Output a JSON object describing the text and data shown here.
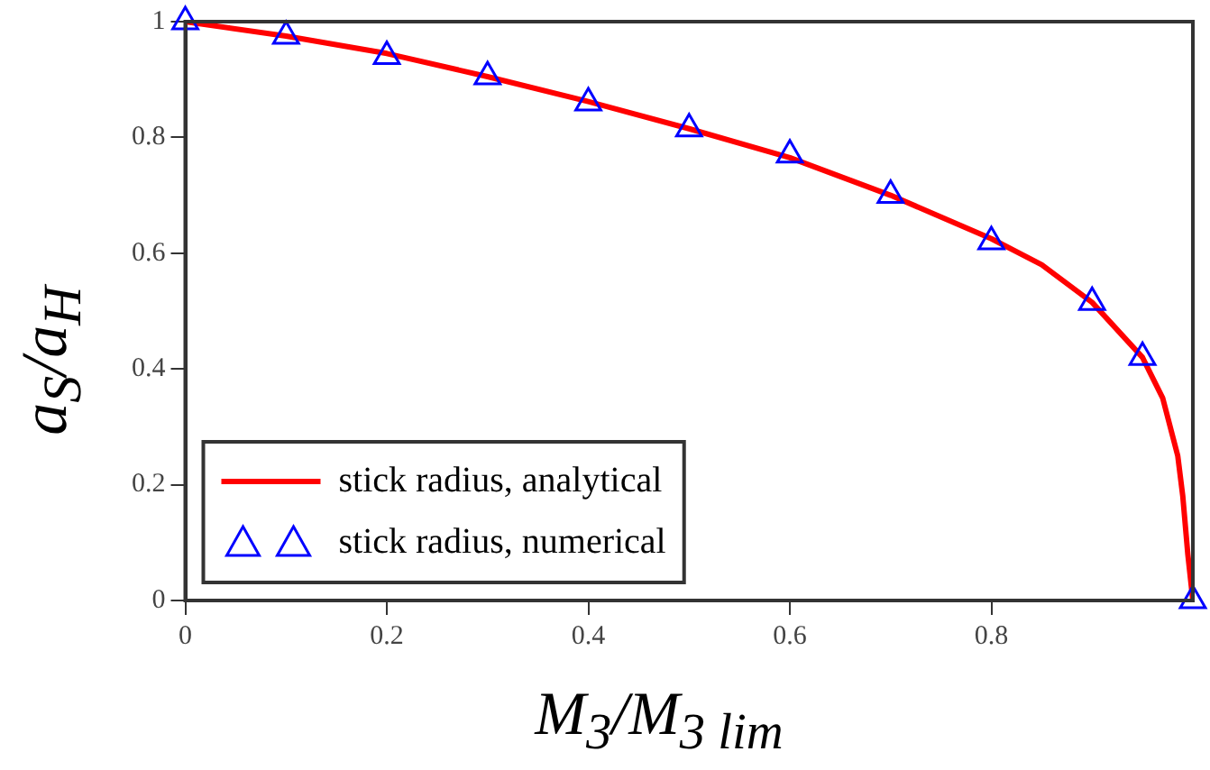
{
  "chart_data": {
    "type": "line",
    "xlabel": "M$_{3}$/M$_{3 lim}$",
    "ylabel": "a$_{S}$/a$_{H}$",
    "xlim": [
      0,
      1
    ],
    "ylim": [
      0,
      1
    ],
    "xticks": [
      0,
      0.2,
      0.4,
      0.6,
      0.8
    ],
    "yticks": [
      0,
      0.2,
      0.4,
      0.6,
      0.8,
      1
    ],
    "grid": false,
    "legend": "bottom left",
    "series": [
      {
        "name": "stick radius, analytical",
        "color": "#ff0000",
        "marker": "none",
        "line_style": "solid",
        "x": [
          0,
          0.1,
          0.2,
          0.3,
          0.4,
          0.5,
          0.6,
          0.7,
          0.8,
          0.85,
          0.9,
          0.95,
          0.97,
          0.985,
          0.99,
          0.995,
          1
        ],
        "values": [
          1,
          0.975,
          0.945,
          0.905,
          0.862,
          0.815,
          0.765,
          0.7,
          0.625,
          0.58,
          0.515,
          0.42,
          0.35,
          0.25,
          0.18,
          0.08,
          0
        ]
      },
      {
        "name": "stick radius, numerical",
        "type": "scatter",
        "color": "#0000ff",
        "marker": "triangle",
        "x": [
          0,
          0.1,
          0.2,
          0.3,
          0.4,
          0.5,
          0.6,
          0.7,
          0.8,
          0.9,
          0.95,
          1
        ],
        "values": [
          1,
          0.975,
          0.94,
          0.905,
          0.86,
          0.815,
          0.77,
          0.7,
          0.62,
          0.515,
          0.42,
          0
        ]
      }
    ]
  }
}
